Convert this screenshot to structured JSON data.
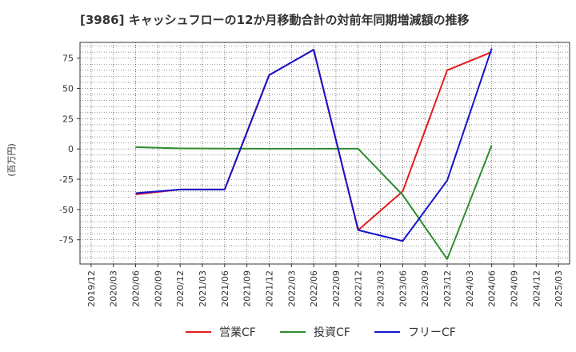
{
  "chart_data": {
    "type": "line",
    "title": "[3986]  キャッシュフローの12か月移動合計の対前年同期増減額の推移",
    "ylabel": "(百万円)",
    "xlabel": "",
    "ylim": [
      -95,
      88
    ],
    "yticks": [
      75,
      50,
      25,
      0,
      -25,
      -50,
      -75
    ],
    "categories": [
      "2019/12",
      "2020/03",
      "2020/06",
      "2020/09",
      "2020/12",
      "2021/03",
      "2021/06",
      "2021/09",
      "2021/12",
      "2022/03",
      "2022/06",
      "2022/09",
      "2022/12",
      "2023/03",
      "2023/06",
      "2023/09",
      "2023/12",
      "2024/03",
      "2024/06",
      "2024/09",
      "2024/12",
      "2025/03"
    ],
    "series": [
      {
        "name": "営業CF",
        "color": "#e41a1c",
        "points": [
          [
            2,
            -37.5
          ],
          [
            4,
            -33.5
          ],
          [
            6,
            -33.5
          ],
          [
            8,
            61
          ],
          [
            10,
            82
          ],
          [
            12,
            -67
          ],
          [
            14,
            -35
          ],
          [
            16,
            65
          ],
          [
            18,
            80
          ]
        ]
      },
      {
        "name": "投資CF",
        "color": "#2e8b2e",
        "points": [
          [
            2,
            1.5
          ],
          [
            4,
            0.5
          ],
          [
            6,
            0.3
          ],
          [
            8,
            0.2
          ],
          [
            10,
            0.2
          ],
          [
            12,
            0.2
          ],
          [
            14,
            -38
          ],
          [
            16,
            -91
          ],
          [
            18,
            3
          ]
        ]
      },
      {
        "name": "フリーCF",
        "color": "#1515cc",
        "points": [
          [
            2,
            -36.5
          ],
          [
            4,
            -33.5
          ],
          [
            6,
            -33.5
          ],
          [
            8,
            61
          ],
          [
            10,
            82
          ],
          [
            12,
            -67
          ],
          [
            14,
            -76
          ],
          [
            16,
            -26
          ],
          [
            18,
            83
          ]
        ]
      }
    ]
  }
}
